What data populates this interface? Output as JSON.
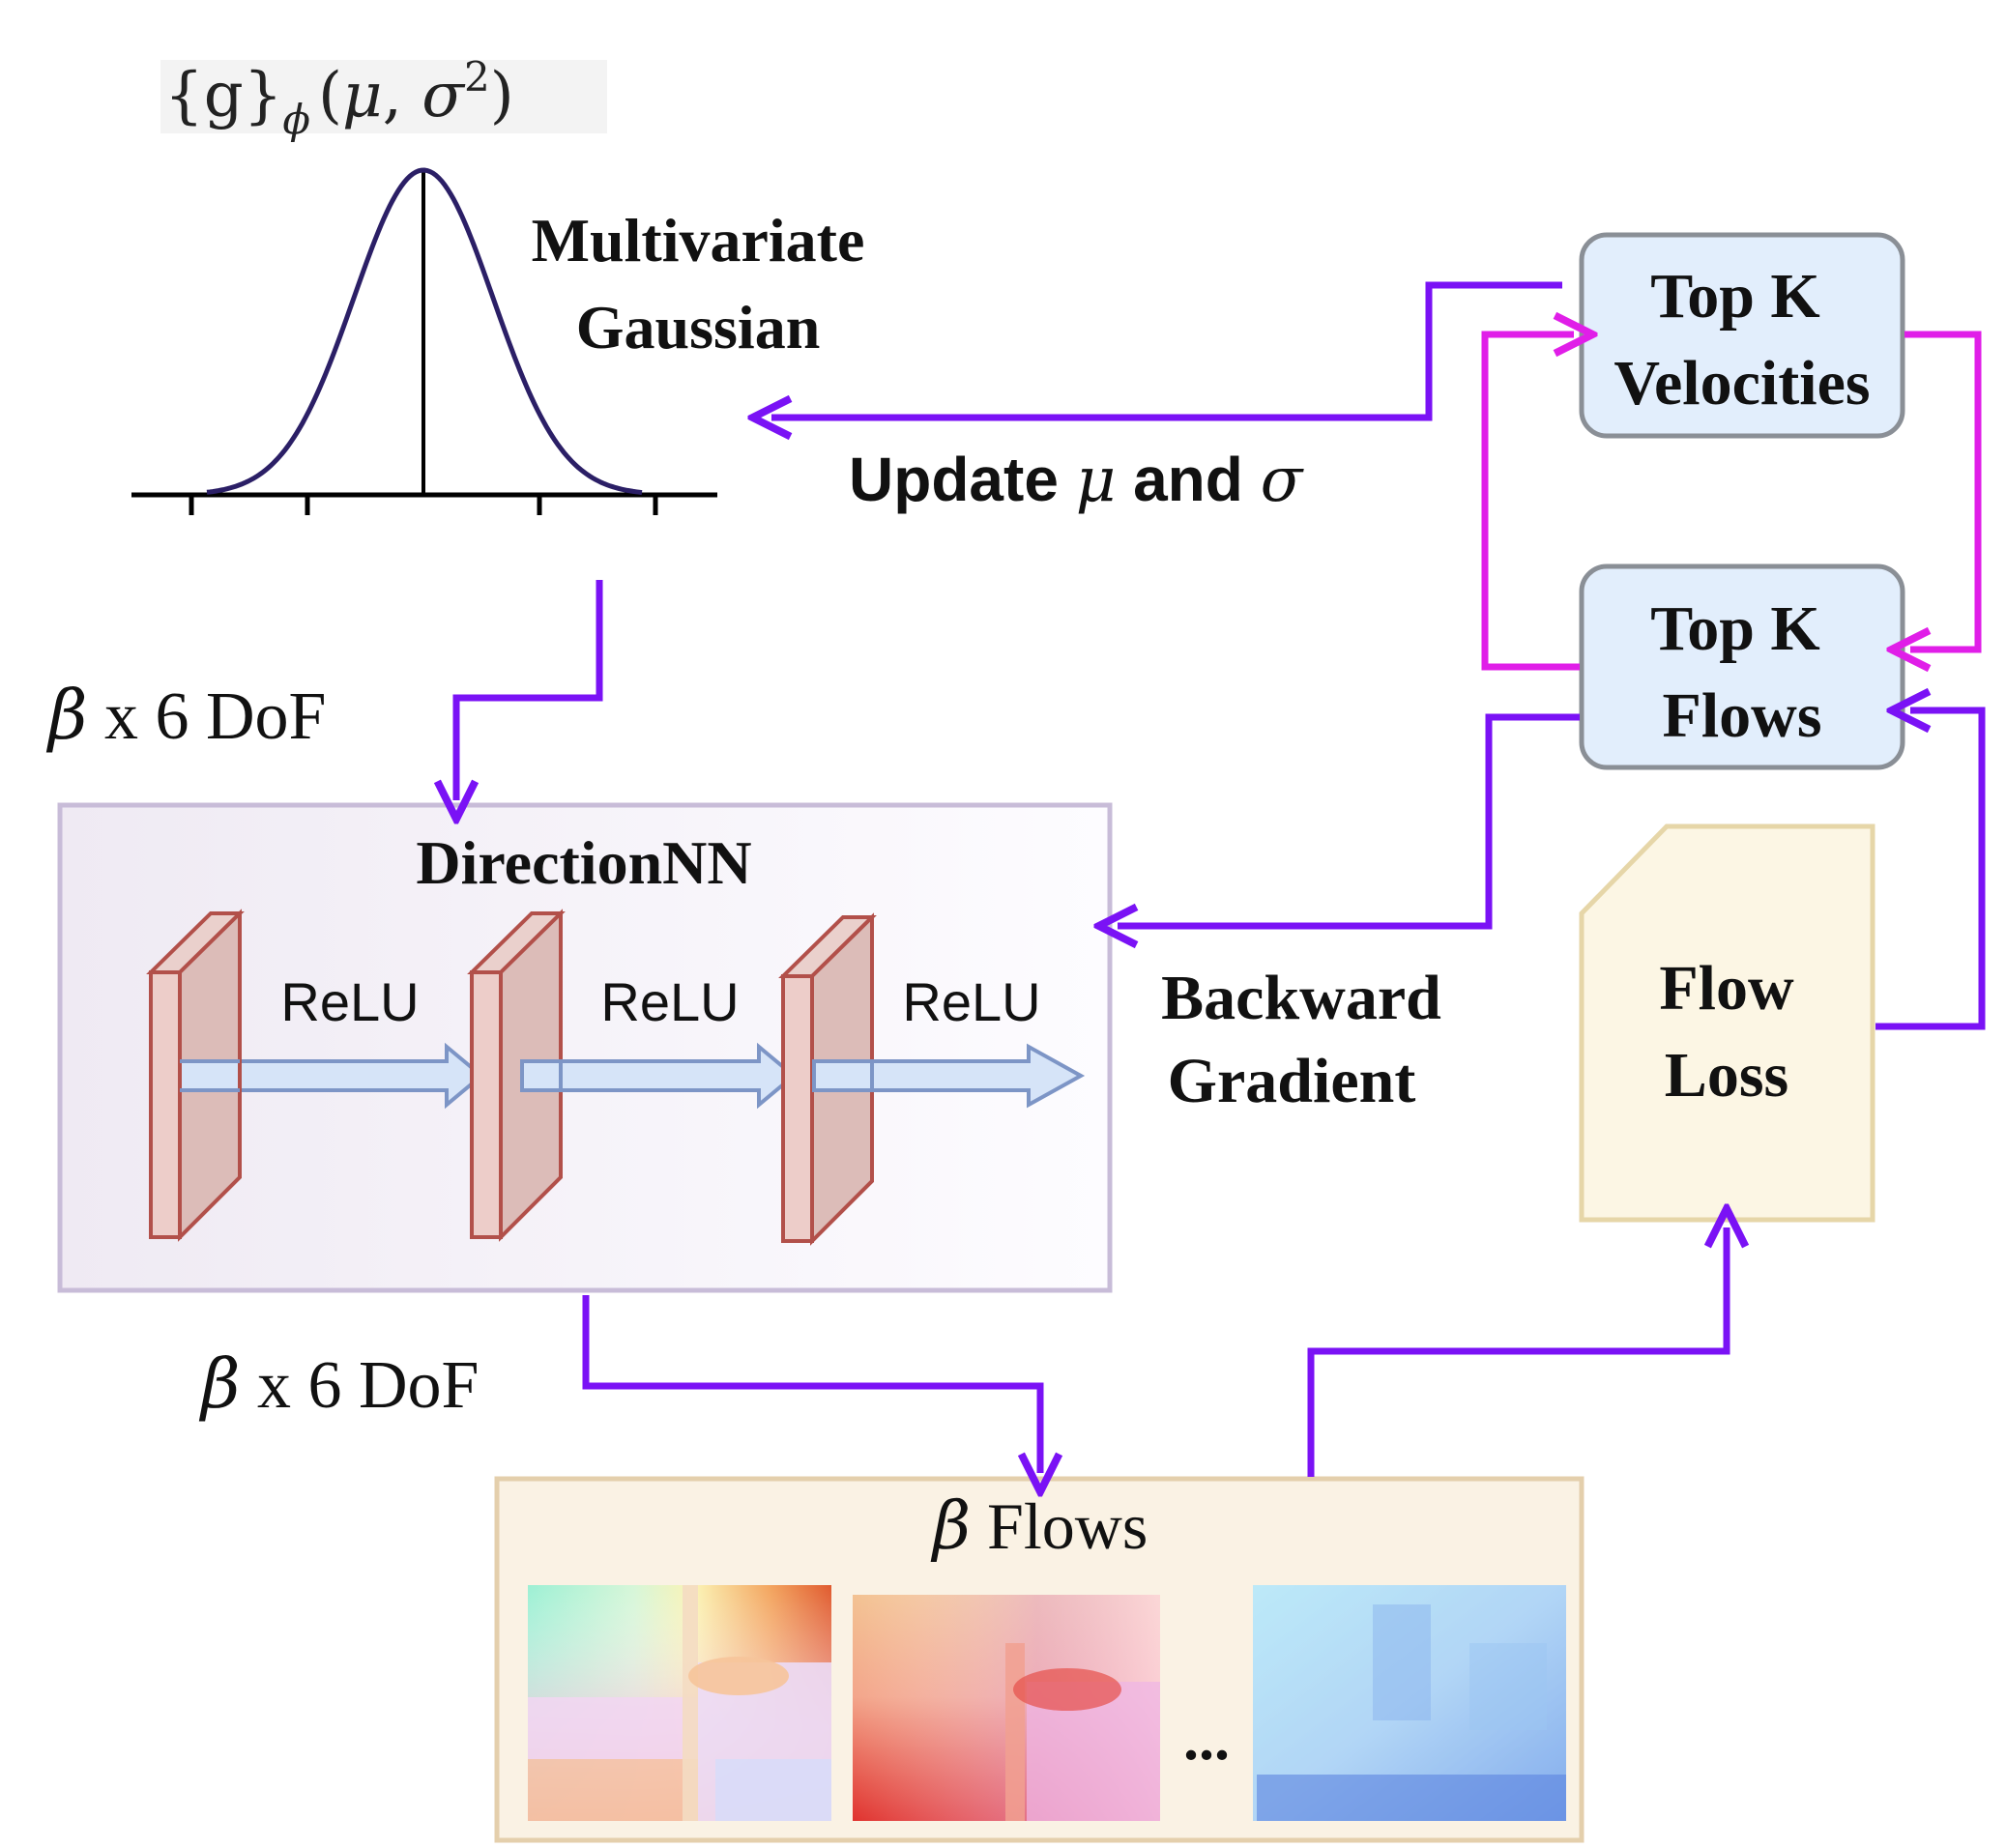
{
  "gaussian": {
    "formula_base": "{g}",
    "formula_sub": "ϕ",
    "formula_paren_open": "(",
    "formula_mu": "μ",
    "formula_comma": ", ",
    "formula_sigma": "σ",
    "formula_exp": "2",
    "formula_paren_close": ")",
    "title_line1": "Multivariate",
    "title_line2": "Gaussian"
  },
  "update_label": {
    "prefix": "Update ",
    "mu": "μ",
    "middle": " and ",
    "sigma": "σ"
  },
  "dof_top": {
    "beta": "β",
    "text": " x 6 DoF"
  },
  "dof_bottom": {
    "beta": "β",
    "text": " x 6 DoF"
  },
  "direction_nn": {
    "title": "DirectionNN",
    "relu_labels": [
      "ReLU",
      "ReLU",
      "ReLU"
    ]
  },
  "backward": {
    "line1": "Backward",
    "line2": "Gradient"
  },
  "top_k_velocities": {
    "line1": "Top K",
    "line2": "Velocities"
  },
  "top_k_flows": {
    "line1": "Top K",
    "line2": "Flows"
  },
  "flow_loss": {
    "line1": "Flow",
    "line2": "Loss"
  },
  "beta_flows": {
    "beta": "β",
    "text": " Flows",
    "ellipsis": "..."
  },
  "colors": {
    "arrow_purple": "#7a12f5",
    "arrow_magenta": "#e01ee8",
    "box_blue_fill": "#e2eefc",
    "box_blue_stroke": "#8a8f96",
    "loss_fill": "#fcf6e4",
    "loss_stroke": "#e6d6a8",
    "flows_fill": "#faf2e4",
    "flows_stroke": "#e4cfac",
    "nn_stroke": "#c8bcd8",
    "layer_fill": "#e0c0bd",
    "layer_stroke": "#b2504a",
    "relu_arrow_fill": "#d6e4f8",
    "relu_arrow_stroke": "#7d95c6",
    "curve": "#2b1f66"
  }
}
